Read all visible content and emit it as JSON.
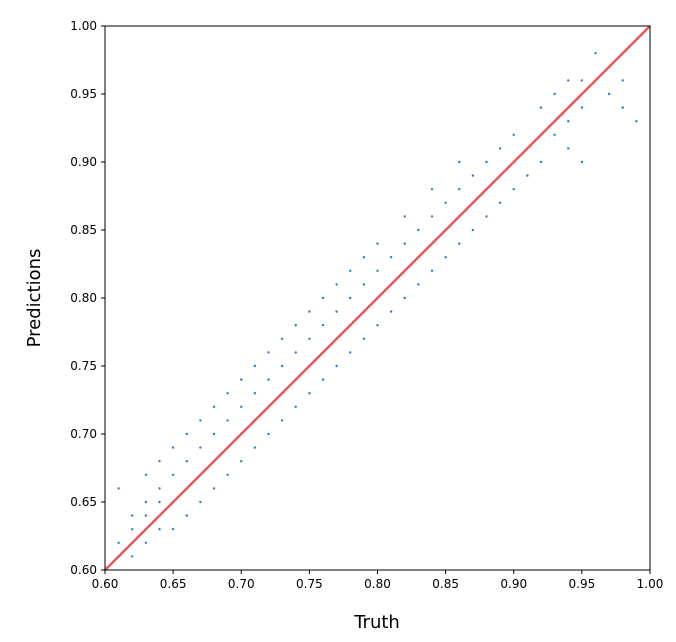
{
  "chart_data": {
    "type": "scatter",
    "x_label": "Truth",
    "y_label": "Predictions",
    "color": "#3a78b8",
    "x": [
      0.61,
      0.61,
      0.61,
      0.62,
      0.62,
      0.62,
      0.63,
      0.63,
      0.63,
      0.63,
      0.64,
      0.64,
      0.64,
      0.64,
      0.65,
      0.65,
      0.65,
      0.65,
      0.66,
      0.66,
      0.66,
      0.66,
      0.67,
      0.67,
      0.67,
      0.67,
      0.68,
      0.68,
      0.68,
      0.68,
      0.69,
      0.69,
      0.69,
      0.69,
      0.7,
      0.7,
      0.7,
      0.7,
      0.71,
      0.71,
      0.71,
      0.71,
      0.72,
      0.72,
      0.72,
      0.72,
      0.73,
      0.73,
      0.73,
      0.73,
      0.74,
      0.74,
      0.74,
      0.74,
      0.75,
      0.75,
      0.75,
      0.75,
      0.76,
      0.76,
      0.76,
      0.76,
      0.77,
      0.77,
      0.77,
      0.77,
      0.78,
      0.78,
      0.78,
      0.78,
      0.79,
      0.79,
      0.79,
      0.79,
      0.8,
      0.8,
      0.8,
      0.8,
      0.81,
      0.81,
      0.81,
      0.82,
      0.82,
      0.82,
      0.82,
      0.83,
      0.83,
      0.83,
      0.84,
      0.84,
      0.84,
      0.84,
      0.85,
      0.85,
      0.85,
      0.86,
      0.86,
      0.86,
      0.86,
      0.87,
      0.87,
      0.87,
      0.88,
      0.88,
      0.88,
      0.89,
      0.89,
      0.89,
      0.9,
      0.9,
      0.9,
      0.91,
      0.91,
      0.92,
      0.92,
      0.92,
      0.93,
      0.93,
      0.94,
      0.94,
      0.94,
      0.95,
      0.95,
      0.95,
      0.96,
      0.97,
      0.98,
      0.98,
      0.99
    ],
    "values": [
      0.61,
      0.62,
      0.66,
      0.61,
      0.63,
      0.64,
      0.62,
      0.64,
      0.65,
      0.67,
      0.63,
      0.65,
      0.66,
      0.68,
      0.63,
      0.65,
      0.67,
      0.69,
      0.64,
      0.66,
      0.68,
      0.7,
      0.65,
      0.67,
      0.69,
      0.71,
      0.66,
      0.68,
      0.7,
      0.72,
      0.67,
      0.69,
      0.71,
      0.73,
      0.68,
      0.7,
      0.72,
      0.74,
      0.69,
      0.71,
      0.73,
      0.75,
      0.7,
      0.72,
      0.74,
      0.76,
      0.71,
      0.73,
      0.75,
      0.77,
      0.72,
      0.74,
      0.76,
      0.78,
      0.73,
      0.75,
      0.77,
      0.79,
      0.74,
      0.76,
      0.78,
      0.8,
      0.75,
      0.77,
      0.79,
      0.81,
      0.76,
      0.78,
      0.8,
      0.82,
      0.77,
      0.79,
      0.81,
      0.83,
      0.78,
      0.8,
      0.82,
      0.84,
      0.79,
      0.81,
      0.83,
      0.8,
      0.82,
      0.84,
      0.86,
      0.81,
      0.83,
      0.85,
      0.82,
      0.84,
      0.86,
      0.88,
      0.83,
      0.85,
      0.87,
      0.84,
      0.86,
      0.88,
      0.9,
      0.85,
      0.87,
      0.89,
      0.86,
      0.88,
      0.9,
      0.87,
      0.89,
      0.91,
      0.88,
      0.9,
      0.92,
      0.89,
      0.91,
      0.9,
      0.92,
      0.94,
      0.92,
      0.95,
      0.91,
      0.93,
      0.96,
      0.9,
      0.94,
      0.96,
      0.98,
      0.95,
      0.94,
      0.96,
      0.93
    ],
    "reference_line": {
      "x": [
        0.6,
        1.0
      ],
      "y": [
        0.6,
        1.0
      ],
      "color": "#e8595a"
    },
    "xlim": [
      0.6,
      1.0
    ],
    "ylim": [
      0.6,
      1.0
    ],
    "xticks": [
      {
        "value": 0.6,
        "label": "0.60"
      },
      0.65,
      {
        "value": 0.7,
        "label": "0.70"
      },
      0.75,
      {
        "value": 0.8,
        "label": "0.80"
      },
      0.85,
      {
        "value": 0.9,
        "label": "0.90"
      },
      0.95,
      {
        "value": 1.0,
        "label": "1.00"
      }
    ],
    "yticks": [
      {
        "value": 0.6,
        "label": "0.60"
      },
      0.65,
      {
        "value": 0.7,
        "label": "0.70"
      },
      0.75,
      {
        "value": 0.8,
        "label": "0.80"
      },
      0.85,
      {
        "value": 0.9,
        "label": "0.90"
      },
      0.95,
      {
        "value": 1.0,
        "label": "1.00"
      }
    ]
  }
}
